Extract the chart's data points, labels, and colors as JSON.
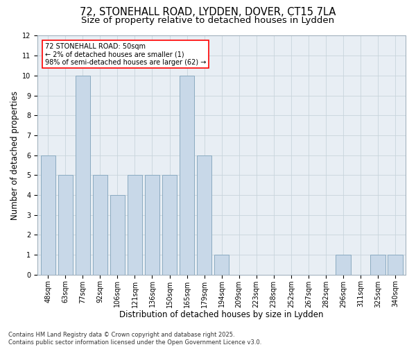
{
  "title_line1": "72, STONEHALL ROAD, LYDDEN, DOVER, CT15 7LA",
  "title_line2": "Size of property relative to detached houses in Lydden",
  "xlabel": "Distribution of detached houses by size in Lydden",
  "ylabel": "Number of detached properties",
  "categories": [
    "48sqm",
    "63sqm",
    "77sqm",
    "92sqm",
    "106sqm",
    "121sqm",
    "136sqm",
    "150sqm",
    "165sqm",
    "179sqm",
    "194sqm",
    "209sqm",
    "223sqm",
    "238sqm",
    "252sqm",
    "267sqm",
    "282sqm",
    "296sqm",
    "311sqm",
    "325sqm",
    "340sqm"
  ],
  "values": [
    6,
    5,
    10,
    5,
    4,
    5,
    5,
    5,
    10,
    6,
    1,
    0,
    0,
    0,
    0,
    0,
    0,
    1,
    0,
    1,
    1
  ],
  "bar_color": "#c8d8e8",
  "bar_edge_color": "#8aaac0",
  "annotation_text": "72 STONEHALL ROAD: 50sqm\n← 2% of detached houses are smaller (1)\n98% of semi-detached houses are larger (62) →",
  "annotation_box_color": "white",
  "annotation_box_edge_color": "red",
  "ylim": [
    0,
    12
  ],
  "yticks": [
    0,
    1,
    2,
    3,
    4,
    5,
    6,
    7,
    8,
    9,
    10,
    11,
    12
  ],
  "grid_color": "#c8d4dc",
  "background_color": "#e8eef4",
  "footer_text": "Contains HM Land Registry data © Crown copyright and database right 2025.\nContains public sector information licensed under the Open Government Licence v3.0.",
  "title_fontsize": 10.5,
  "subtitle_fontsize": 9.5,
  "axis_label_fontsize": 8.5,
  "tick_fontsize": 7,
  "annotation_fontsize": 7,
  "footer_fontsize": 6
}
